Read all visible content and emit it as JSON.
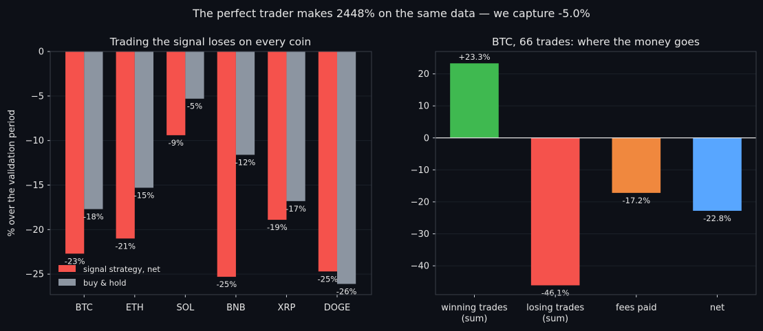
{
  "suptitle": "The perfect trader makes 2448% on the same data — we capture -5.0%",
  "colors": {
    "background": "#0d1017",
    "signal": "#f5524c",
    "hold": "#8c95a1",
    "winning": "#3fb950",
    "losing": "#f5524c",
    "fees": "#f0883e",
    "net": "#58a6ff"
  },
  "chart_data": [
    {
      "type": "bar",
      "title": "Trading the signal loses on every coin",
      "ylabel": "% over the validation period",
      "xlabel": "",
      "categories": [
        "BTC",
        "ETH",
        "SOL",
        "BNB",
        "XRP",
        "DOGE"
      ],
      "series": [
        {
          "name": "signal strategy, net",
          "values": [
            -22.7,
            -21.0,
            -9.4,
            -25.3,
            -18.9,
            -24.7
          ],
          "labels": [
            "-23%",
            "-21%",
            "-9%",
            "-25%",
            "-19%",
            "-25%"
          ]
        },
        {
          "name": "buy & hold",
          "values": [
            -17.7,
            -15.3,
            -5.3,
            -11.6,
            -16.8,
            -26.1
          ],
          "labels": [
            "-18%",
            "-15%",
            "-5%",
            "-12%",
            "-17%",
            "-26%"
          ]
        }
      ],
      "ylim": [
        -27.3,
        0
      ],
      "yticks": [
        0,
        -5,
        -10,
        -15,
        -20,
        -25
      ],
      "ytick_labels": [
        "0",
        "−5",
        "−10",
        "−15",
        "−20",
        "−25"
      ],
      "legend": "lower-left"
    },
    {
      "type": "bar",
      "title": "BTC, 66 trades: where the money goes",
      "xlabel": "",
      "ylabel": "",
      "categories": [
        [
          "winning trades",
          "(sum)"
        ],
        [
          "losing trades",
          "(sum)"
        ],
        [
          "fees paid"
        ],
        [
          "net"
        ]
      ],
      "values": [
        23.3,
        -46.1,
        -17.2,
        -22.8
      ],
      "labels": [
        "+23.3%",
        "-46.1%",
        "-17.2%",
        "-22.8%"
      ],
      "ylim": [
        -49,
        27
      ],
      "yticks": [
        20,
        10,
        0,
        -10,
        -20,
        -30,
        -40
      ],
      "ytick_labels": [
        "20",
        "10",
        "0",
        "−10",
        "−20",
        "−30",
        "−40"
      ]
    }
  ]
}
